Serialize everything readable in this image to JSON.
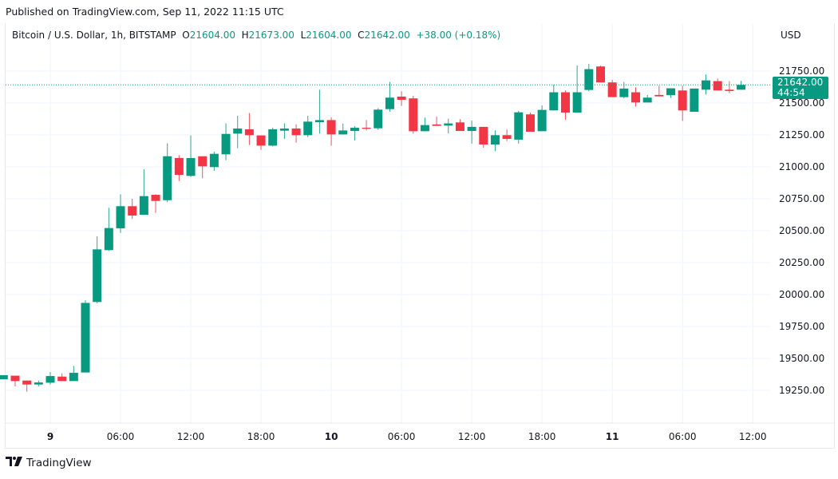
{
  "published": "Published on TradingView.com, Sep 11, 2022 11:15 UTC",
  "legend": {
    "symbol": "Bitcoin / U.S. Dollar, 1h, BITSTAMP",
    "o_label": "O",
    "o": "21604.00",
    "h_label": "H",
    "h": "21673.00",
    "l_label": "L",
    "l": "21604.00",
    "c_label": "C",
    "c": "21642.00",
    "change": "+38.00 (+0.18%)"
  },
  "currency": "USD",
  "last_price": {
    "value": "21642.00",
    "countdown": "44:54"
  },
  "brand": {
    "logo_mark": "TV",
    "name": "TradingView"
  },
  "colors": {
    "up": "#089981",
    "down": "#f23645",
    "grid": "#f0f3fa"
  },
  "chart_data": {
    "type": "candlestick",
    "interval": "1h",
    "ylim": [
      19100,
      21850
    ],
    "y_ticks": [
      "21750.00",
      "21500.00",
      "21250.00",
      "21000.00",
      "20750.00",
      "20500.00",
      "20250.00",
      "20000.00",
      "19750.00",
      "19500.00",
      "19250.00"
    ],
    "x_ticks": [
      {
        "label": "9",
        "time": "2022-09-09 00:00",
        "day": true
      },
      {
        "label": "06:00",
        "time": "2022-09-09 06:00"
      },
      {
        "label": "12:00",
        "time": "2022-09-09 12:00"
      },
      {
        "label": "18:00",
        "time": "2022-09-09 18:00"
      },
      {
        "label": "10",
        "time": "2022-09-10 00:00",
        "day": true
      },
      {
        "label": "06:00",
        "time": "2022-09-10 06:00"
      },
      {
        "label": "12:00",
        "time": "2022-09-10 12:00"
      },
      {
        "label": "18:00",
        "time": "2022-09-10 18:00"
      },
      {
        "label": "11",
        "time": "2022-09-11 00:00",
        "day": true
      },
      {
        "label": "06:00",
        "time": "2022-09-11 06:00"
      },
      {
        "label": "12:00",
        "time": "2022-09-11 12:00"
      }
    ],
    "grid": true,
    "last_price_line": 21642,
    "columns": [
      "time",
      "open",
      "high",
      "low",
      "close"
    ],
    "candles": [
      [
        "2022-09-08 20:00",
        19337,
        19369,
        19337,
        19369
      ],
      [
        "2022-09-08 21:00",
        19365,
        19365,
        19281,
        19323
      ],
      [
        "2022-09-08 22:00",
        19327,
        19327,
        19240,
        19296
      ],
      [
        "2022-09-08 23:00",
        19296,
        19327,
        19281,
        19312
      ],
      [
        "2022-09-09 00:00",
        19310,
        19394,
        19296,
        19362
      ],
      [
        "2022-09-09 01:00",
        19358,
        19383,
        19323,
        19323
      ],
      [
        "2022-09-09 02:00",
        19323,
        19442,
        19323,
        19388
      ],
      [
        "2022-09-09 03:00",
        19390,
        19956,
        19390,
        19935
      ],
      [
        "2022-09-09 04:00",
        19942,
        20456,
        19931,
        20354
      ],
      [
        "2022-09-09 05:00",
        20348,
        20679,
        20342,
        20521
      ],
      [
        "2022-09-09 06:00",
        20519,
        20785,
        20483,
        20692
      ],
      [
        "2022-09-09 07:00",
        20692,
        20750,
        20592,
        20619
      ],
      [
        "2022-09-09 08:00",
        20625,
        20981,
        20625,
        20771
      ],
      [
        "2022-09-09 09:00",
        20781,
        20785,
        20640,
        20733
      ],
      [
        "2022-09-09 10:00",
        20739,
        21185,
        20723,
        21083
      ],
      [
        "2022-09-09 11:00",
        21069,
        21091,
        20889,
        20937
      ],
      [
        "2022-09-09 12:00",
        20929,
        21246,
        20921,
        21069
      ],
      [
        "2022-09-09 13:00",
        21083,
        21083,
        20910,
        21004
      ],
      [
        "2022-09-09 14:00",
        20998,
        21119,
        20969,
        21102
      ],
      [
        "2022-09-09 15:00",
        21098,
        21341,
        21052,
        21258
      ],
      [
        "2022-09-09 16:00",
        21260,
        21400,
        21146,
        21300
      ],
      [
        "2022-09-09 17:00",
        21294,
        21421,
        21171,
        21248
      ],
      [
        "2022-09-09 18:00",
        21246,
        21246,
        21133,
        21166
      ],
      [
        "2022-09-09 19:00",
        21166,
        21306,
        21160,
        21294
      ],
      [
        "2022-09-09 20:00",
        21283,
        21341,
        21219,
        21300
      ],
      [
        "2022-09-09 21:00",
        21300,
        21333,
        21190,
        21248
      ],
      [
        "2022-09-09 22:00",
        21248,
        21400,
        21233,
        21354
      ],
      [
        "2022-09-09 23:00",
        21350,
        21604,
        21260,
        21366
      ],
      [
        "2022-09-10 00:00",
        21366,
        21387,
        21166,
        21254
      ],
      [
        "2022-09-10 01:00",
        21254,
        21339,
        21254,
        21285
      ],
      [
        "2022-09-10 02:00",
        21281,
        21319,
        21206,
        21306
      ],
      [
        "2022-09-10 03:00",
        21306,
        21366,
        21285,
        21298
      ],
      [
        "2022-09-10 04:00",
        21302,
        21460,
        21290,
        21448
      ],
      [
        "2022-09-10 05:00",
        21452,
        21665,
        21432,
        21542
      ],
      [
        "2022-09-10 06:00",
        21550,
        21592,
        21477,
        21525
      ],
      [
        "2022-09-10 07:00",
        21536,
        21556,
        21259,
        21279
      ],
      [
        "2022-09-10 08:00",
        21279,
        21386,
        21279,
        21327
      ],
      [
        "2022-09-10 09:00",
        21332,
        21394,
        21321,
        21321
      ],
      [
        "2022-09-10 10:00",
        21323,
        21377,
        21261,
        21340
      ],
      [
        "2022-09-10 11:00",
        21348,
        21373,
        21281,
        21281
      ],
      [
        "2022-09-10 12:00",
        21281,
        21363,
        21182,
        21313
      ],
      [
        "2022-09-10 13:00",
        21313,
        21313,
        21150,
        21175
      ],
      [
        "2022-09-10 14:00",
        21175,
        21286,
        21123,
        21248
      ],
      [
        "2022-09-10 15:00",
        21248,
        21292,
        21202,
        21219
      ],
      [
        "2022-09-10 16:00",
        21213,
        21438,
        21182,
        21427
      ],
      [
        "2022-09-10 17:00",
        21411,
        21425,
        21275,
        21275
      ],
      [
        "2022-09-10 18:00",
        21279,
        21481,
        21279,
        21446
      ],
      [
        "2022-09-10 19:00",
        21442,
        21644,
        21442,
        21584
      ],
      [
        "2022-09-10 20:00",
        21584,
        21598,
        21369,
        21425
      ],
      [
        "2022-09-10 21:00",
        21425,
        21794,
        21425,
        21584
      ],
      [
        "2022-09-10 22:00",
        21602,
        21806,
        21592,
        21765
      ],
      [
        "2022-09-10 23:00",
        21786,
        21792,
        21661,
        21661
      ],
      [
        "2022-09-11 00:00",
        21661,
        21681,
        21546,
        21546
      ],
      [
        "2022-09-11 01:00",
        21546,
        21665,
        21536,
        21613
      ],
      [
        "2022-09-11 02:00",
        21584,
        21623,
        21473,
        21504
      ],
      [
        "2022-09-11 03:00",
        21504,
        21563,
        21504,
        21542
      ],
      [
        "2022-09-11 04:00",
        21563,
        21636,
        21552,
        21552
      ],
      [
        "2022-09-11 05:00",
        21561,
        21615,
        21540,
        21615
      ],
      [
        "2022-09-11 06:00",
        21598,
        21636,
        21359,
        21442
      ],
      [
        "2022-09-11 07:00",
        21431,
        21613,
        21431,
        21613
      ],
      [
        "2022-09-11 08:00",
        21604,
        21723,
        21567,
        21677
      ],
      [
        "2022-09-11 09:00",
        21671,
        21692,
        21598,
        21598
      ],
      [
        "2022-09-11 10:00",
        21604,
        21671,
        21577,
        21594
      ],
      [
        "2022-09-11 11:00",
        21604,
        21673,
        21604,
        21642
      ]
    ]
  }
}
